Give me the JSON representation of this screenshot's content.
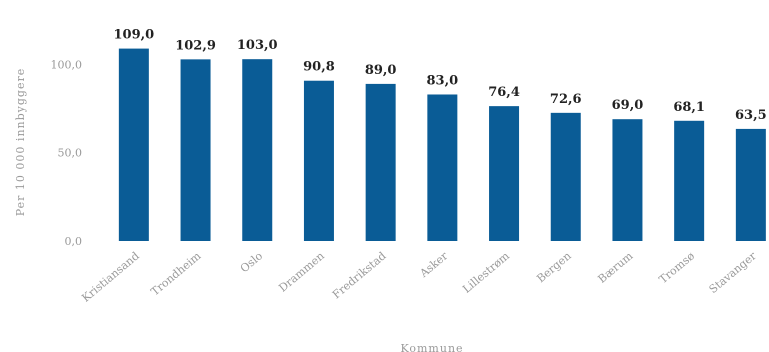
{
  "chart_data": {
    "type": "bar",
    "title": "",
    "xlabel": "Kommune",
    "ylabel": "Per 10 000 innbyggere",
    "categories": [
      "Kristiansand",
      "Trondheim",
      "Oslo",
      "Drammen",
      "Fredrikstad",
      "Asker",
      "Lillestrøm",
      "Bergen",
      "Bærum",
      "Tromsø",
      "Stavanger"
    ],
    "values": [
      109.0,
      102.9,
      103.0,
      90.8,
      89.0,
      83.0,
      76.4,
      72.6,
      69.0,
      68.1,
      63.5
    ],
    "value_labels": [
      "109,0",
      "102,9",
      "103,0",
      "90,8",
      "89,0",
      "83,0",
      "76,4",
      "72,6",
      "69,0",
      "68,1",
      "63,5"
    ],
    "y_ticks": [
      0,
      50,
      100
    ],
    "y_tick_labels": [
      "0,0",
      "50,0",
      "100,0"
    ],
    "ylim": [
      0,
      115
    ],
    "grid": false,
    "legend": "none",
    "bar_color": "#0a5c96"
  }
}
